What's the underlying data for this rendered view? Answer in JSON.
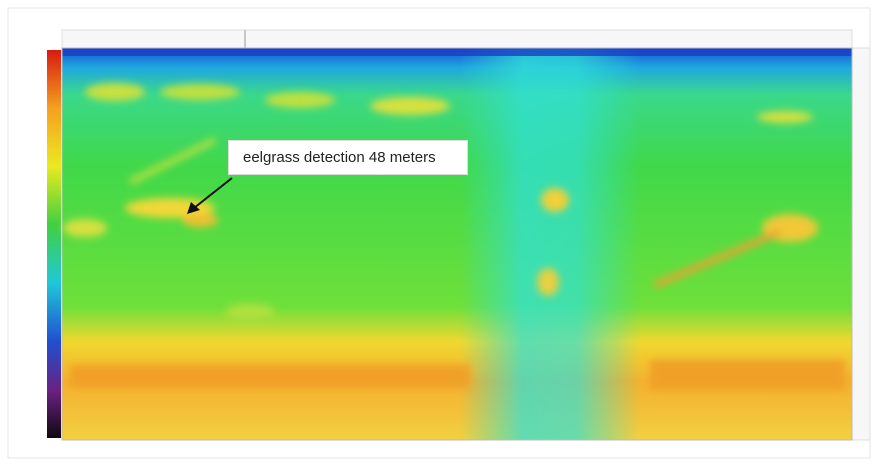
{
  "annotation": {
    "label": "eelgrass detection 48 meters"
  }
}
